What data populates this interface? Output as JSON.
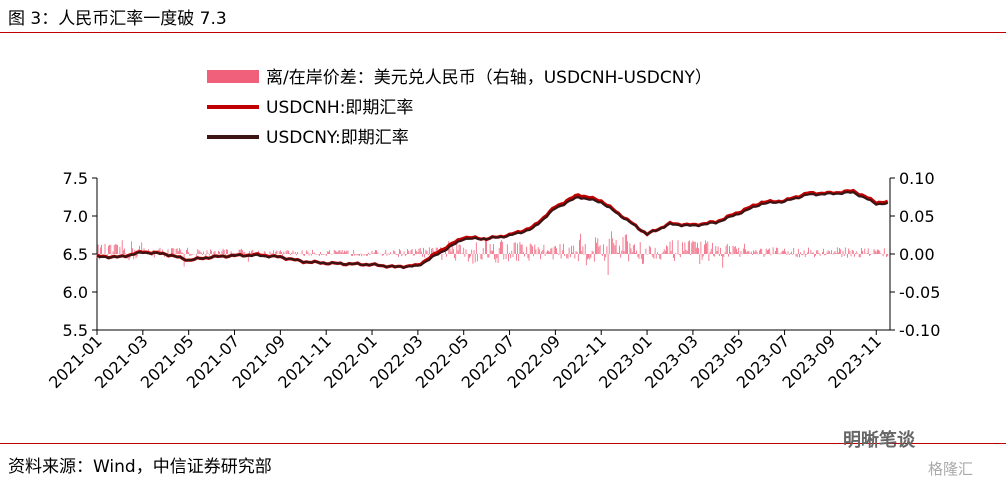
{
  "header": {
    "title": "图 3：人民币汇率一度破 7.3"
  },
  "footer": {
    "source": "资料来源：Wind，中信证券研究部"
  },
  "watermark": {
    "main": "明晰笔谈",
    "sub": "格隆汇"
  },
  "colors": {
    "cnh": "#c00000",
    "cny": "#3b1414",
    "spread": "#f0607a",
    "rule": "#c00000"
  },
  "chart_data": {
    "type": "line",
    "title": "",
    "legend_position": "top",
    "grid": false,
    "x_axis": {
      "ticks": [
        "2021-01",
        "2021-03",
        "2021-05",
        "2021-07",
        "2021-09",
        "2021-11",
        "2022-01",
        "2022-03",
        "2022-05",
        "2022-07",
        "2022-09",
        "2022-11",
        "2023-01",
        "2023-03",
        "2023-05",
        "2023-07",
        "2023-09",
        "2023-11"
      ],
      "range": [
        "2021-01",
        "2023-11"
      ]
    },
    "y_left": {
      "range": [
        5.5,
        7.5
      ],
      "ticks": [
        "7.5",
        "7.0",
        "6.5",
        "6.0",
        "5.5"
      ]
    },
    "y_right": {
      "range": [
        -0.1,
        0.1
      ],
      "ticks": [
        "0.10",
        "0.05",
        "0.00",
        "-0.05",
        "-0.10"
      ]
    },
    "series": [
      {
        "name": "离/在岸价差：美元兑人民币（右轴，USDCNH-USDCNY）",
        "kind": "bar",
        "axis": "right",
        "monthly_amplitude": [
          0.015,
          0.02,
          0.01,
          0.01,
          0.008,
          0.008,
          0.008,
          0.006,
          0.006,
          0.006,
          0.006,
          0.006,
          0.006,
          0.008,
          0.01,
          0.02,
          0.025,
          0.025,
          0.02,
          0.015,
          0.015,
          0.03,
          0.035,
          0.03,
          0.015,
          0.02,
          0.02,
          0.015,
          0.01,
          0.01,
          0.01,
          0.01,
          0.01,
          0.01,
          0.01
        ]
      },
      {
        "name": "USDCNH:即期汇率",
        "kind": "line",
        "axis": "left",
        "x": [
          "2021-01",
          "2021-02",
          "2021-03",
          "2021-04",
          "2021-05",
          "2021-06",
          "2021-07",
          "2021-08",
          "2021-09",
          "2021-10",
          "2021-11",
          "2021-12",
          "2022-01",
          "2022-02",
          "2022-03",
          "2022-04",
          "2022-05",
          "2022-06",
          "2022-07",
          "2022-08",
          "2022-09",
          "2022-10",
          "2022-11",
          "2022-12",
          "2023-01",
          "2023-02",
          "2023-03",
          "2023-04",
          "2023-05",
          "2023-06",
          "2023-07",
          "2023-08",
          "2023-09",
          "2023-10",
          "2023-11"
        ],
        "values": [
          6.47,
          6.46,
          6.53,
          6.5,
          6.42,
          6.46,
          6.48,
          6.49,
          6.46,
          6.4,
          6.38,
          6.37,
          6.36,
          6.33,
          6.35,
          6.55,
          6.72,
          6.7,
          6.75,
          6.85,
          7.12,
          7.28,
          7.2,
          6.98,
          6.76,
          6.9,
          6.88,
          6.92,
          7.05,
          7.18,
          7.2,
          7.3,
          7.3,
          7.33,
          7.18
        ]
      },
      {
        "name": "USDCNY:即期汇率",
        "kind": "line",
        "axis": "left",
        "x": [
          "2021-01",
          "2021-02",
          "2021-03",
          "2021-04",
          "2021-05",
          "2021-06",
          "2021-07",
          "2021-08",
          "2021-09",
          "2021-10",
          "2021-11",
          "2021-12",
          "2022-01",
          "2022-02",
          "2022-03",
          "2022-04",
          "2022-05",
          "2022-06",
          "2022-07",
          "2022-08",
          "2022-09",
          "2022-10",
          "2022-11",
          "2022-12",
          "2023-01",
          "2023-02",
          "2023-03",
          "2023-04",
          "2023-05",
          "2023-06",
          "2023-07",
          "2023-08",
          "2023-09",
          "2023-10",
          "2023-11"
        ],
        "values": [
          6.46,
          6.46,
          6.52,
          6.5,
          6.42,
          6.46,
          6.48,
          6.48,
          6.46,
          6.4,
          6.38,
          6.37,
          6.36,
          6.33,
          6.34,
          6.52,
          6.7,
          6.7,
          6.74,
          6.83,
          7.1,
          7.25,
          7.18,
          6.97,
          6.76,
          6.89,
          6.87,
          6.91,
          7.03,
          7.16,
          7.19,
          7.28,
          7.29,
          7.31,
          7.16
        ]
      }
    ]
  }
}
